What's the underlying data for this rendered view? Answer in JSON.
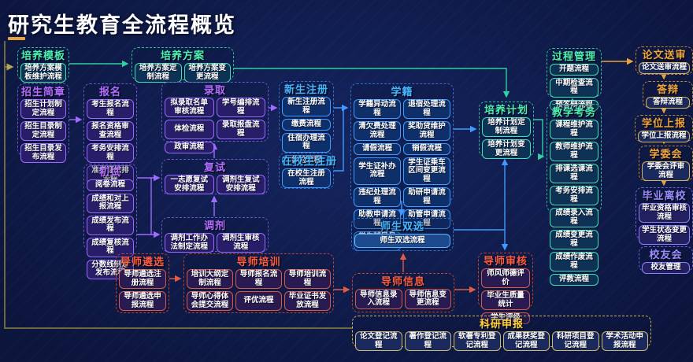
{
  "title": "研究生教育全流程概览",
  "colors": {
    "background": "#101d50",
    "green_accent": "#4df0b0",
    "purple_accent": "#b46bff",
    "blue_accent": "#45b5ff",
    "orange_accent": "#f0a53a",
    "violet_accent": "#9a8cff",
    "red_accent": "#ff5c40",
    "yellow_accent": "#ffd43c",
    "gold_connector": "#8d8540",
    "item_text": "#ffffff"
  },
  "groups": [
    {
      "id": "pymb",
      "label": "培养模板",
      "items": [
        "培养方案模板维护流程"
      ]
    },
    {
      "id": "pyfa",
      "label": "培养方案",
      "items": [
        "培养方案定制流程",
        "培养方案变更流程"
      ]
    },
    {
      "id": "zsjz",
      "label": "招生简章",
      "items": [
        "招生计划制定流程",
        "招生目录制定流程",
        "招生目录发布流程"
      ]
    },
    {
      "id": "bm",
      "label": "报名",
      "items": [
        "考生报名流程",
        "报名资格审查流程",
        "考务安排流程",
        "准考证编排流程"
      ]
    },
    {
      "id": "cs",
      "label": "初试",
      "items": [
        "阅卷流程",
        "成绩和对上报流程",
        "成绩发布流程",
        "成绩复核流程",
        "分数线制定发布流程"
      ]
    },
    {
      "id": "lq",
      "label": "录取",
      "items": [
        "拟录取名单审核流程",
        "学号编排流程",
        "体检流程",
        "录取报盘流程",
        "政审流程"
      ]
    },
    {
      "id": "fs",
      "label": "复试",
      "items": [
        "一志愿复试安排流程",
        "调剂生复试安排流程"
      ]
    },
    {
      "id": "tj",
      "label": "调剂",
      "items": [
        "调剂工作办法制定流程",
        "调剂生审核流程"
      ]
    },
    {
      "id": "xszc",
      "label": "新生注册",
      "items": [
        "新生注册流程",
        "缴费流程",
        "住宿办理流程",
        "体检流程"
      ]
    },
    {
      "id": "zxszc",
      "label": "在校生注册",
      "items": [
        "在校生注册流程"
      ]
    },
    {
      "id": "xj",
      "label": "学籍",
      "items": [
        "学籍异动流程",
        "退宿处理流程",
        "清欠费处理流程",
        "奖助贷维护流程",
        "请假流程",
        "销假流程",
        "学生证补办流程",
        "学生证乘车区间变更流程",
        "违纪处理流程",
        "助研申请流程",
        "助教申请流程",
        "助管申请流程",
        "学生辅导员申请流程"
      ]
    },
    {
      "id": "pyjh",
      "label": "培养计划",
      "items": [
        "培养计划定制流程",
        "培养计划变更流程"
      ]
    },
    {
      "id": "gcgl",
      "label": "过程管理",
      "items": [
        "开题流程",
        "中期检查流程",
        "预答辩流程"
      ]
    },
    {
      "id": "jxkw",
      "label": "教学考务",
      "items": [
        "课程维护流程",
        "教师维护流程",
        "排课选课流程",
        "考务安排流程",
        "成绩录入流程",
        "成绩变更流程",
        "成绩作废流程",
        "评教流程"
      ]
    },
    {
      "id": "lwss",
      "label": "论文送审",
      "items": [
        "论文送审流程"
      ]
    },
    {
      "id": "db",
      "label": "答辩",
      "items": [
        "答辩流程"
      ]
    },
    {
      "id": "xwsb",
      "label": "学位上报",
      "items": [
        "学位上报流程"
      ]
    },
    {
      "id": "xwh",
      "label": "学委会",
      "items": [
        "学委会评审流程"
      ]
    },
    {
      "id": "bylx",
      "label": "毕业离校",
      "items": [
        "毕业资格审核流程",
        "学生状态变更流程"
      ]
    },
    {
      "id": "xyh",
      "label": "校友会",
      "items": [
        "校友管理"
      ]
    },
    {
      "id": "sssx",
      "label": "师生双选",
      "items": [
        "师生双选流程"
      ]
    },
    {
      "id": "dsxx",
      "label": "导师信息",
      "items": [
        "导师信息录入流程",
        "导师信息变更流程"
      ]
    },
    {
      "id": "dssh",
      "label": "导师审核",
      "items": [
        "师风师德评价",
        "毕业生质量统计",
        "学生评级"
      ]
    },
    {
      "id": "dslx",
      "label": "导师遴选",
      "items": [
        "导师遴选注册流程",
        "导师遴选申报流程"
      ]
    },
    {
      "id": "dspx",
      "label": "导师培训",
      "items": [
        "培训大纲定制流程",
        "导师报名流程",
        "导师培训流程",
        "导师心得体会提交流程",
        "评优流程",
        "毕业证书发放流程"
      ]
    },
    {
      "id": "kysb",
      "label": "科研申报",
      "items": [
        "论文登记流程",
        "著作登记流程",
        "软著专利登记流程",
        "成果获奖登记流程",
        "科研项目登记流程",
        "学术活动申报流程"
      ]
    }
  ]
}
